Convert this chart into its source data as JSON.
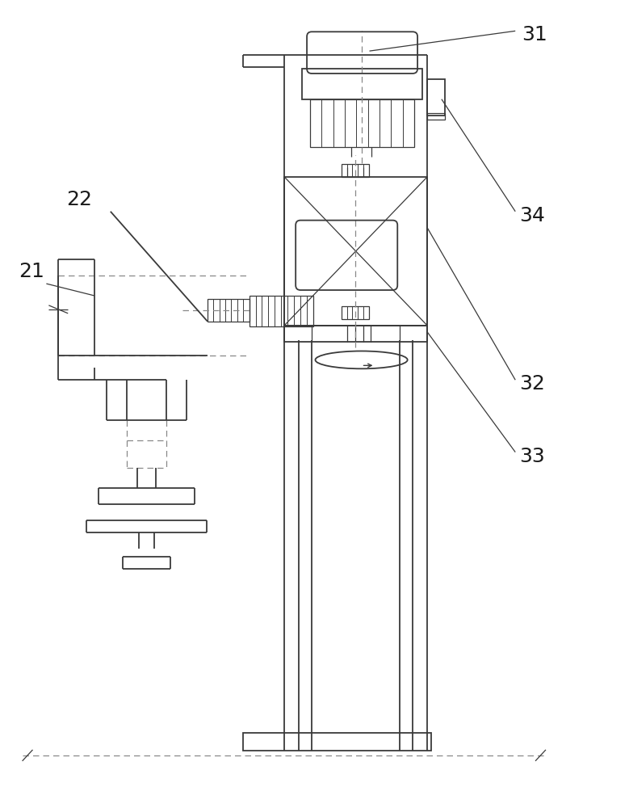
{
  "bg_color": "#ffffff",
  "line_color": "#3a3a3a",
  "dashed_color": "#888888",
  "label_color": "#1a1a1a",
  "label_fontsize": 18,
  "lw_main": 1.3,
  "lw_thin": 0.9
}
